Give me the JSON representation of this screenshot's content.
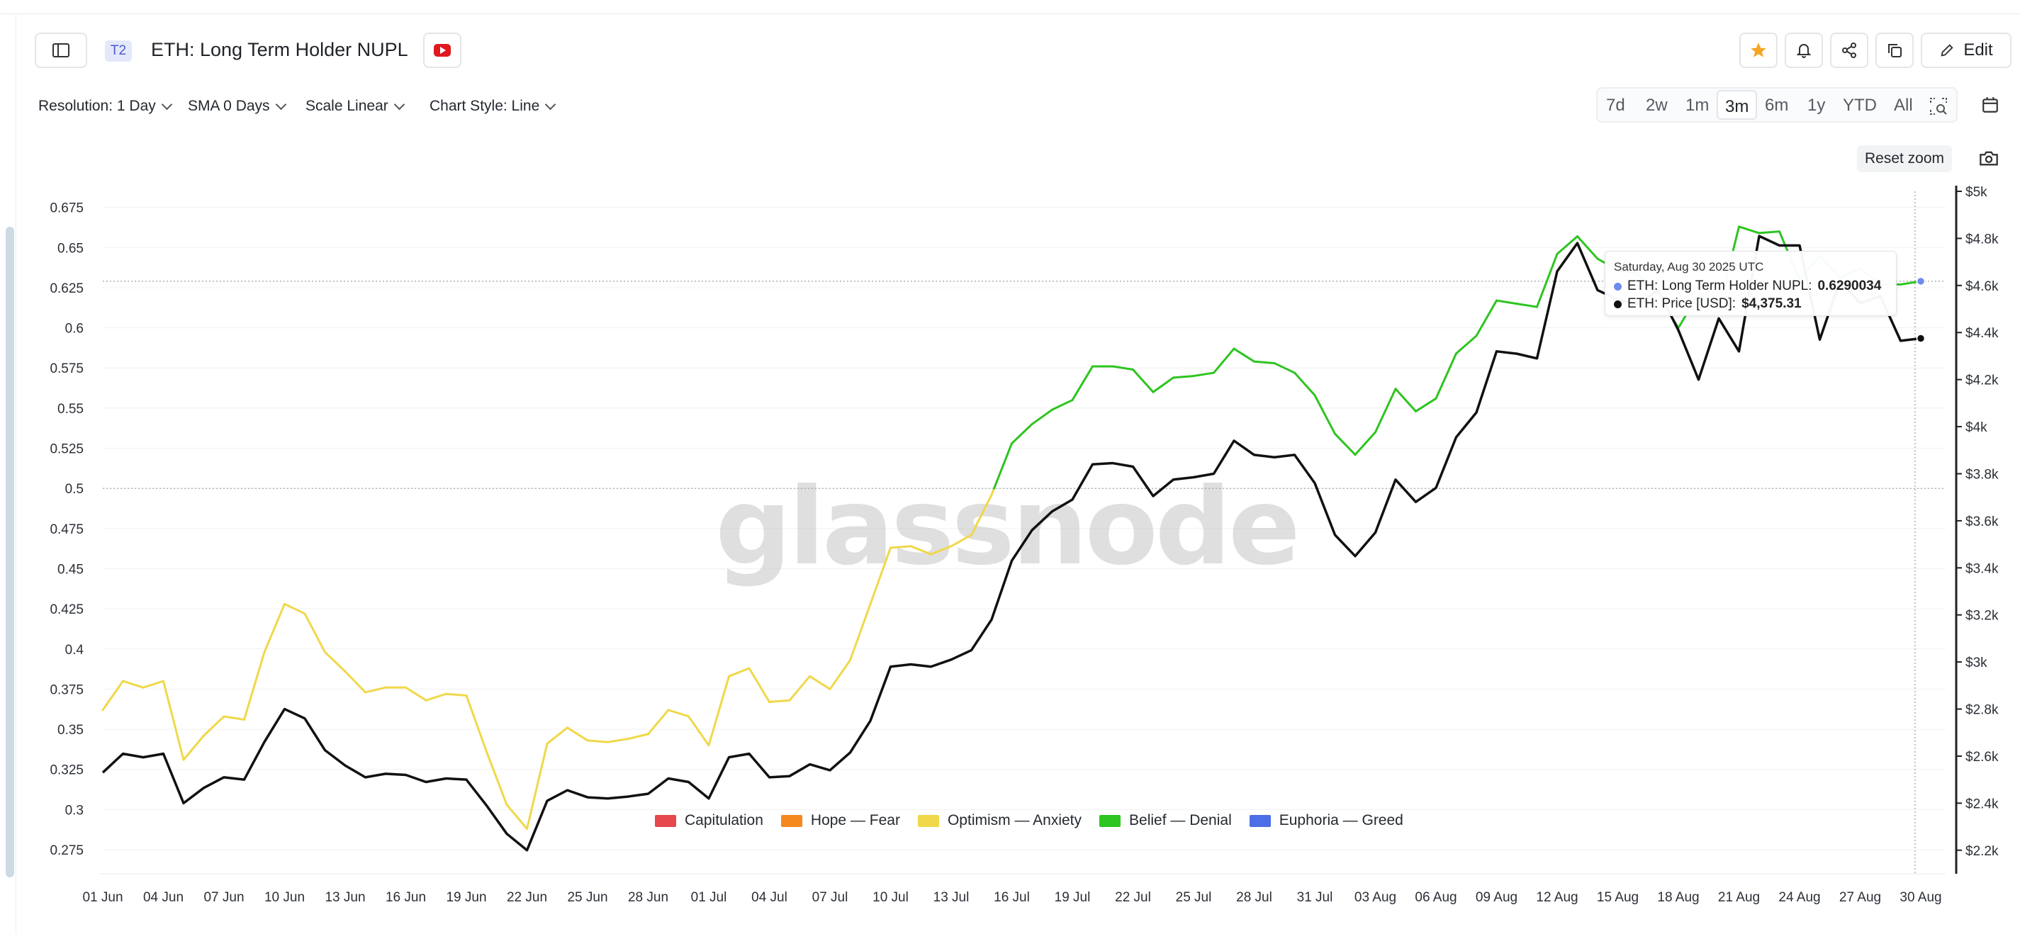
{
  "header": {
    "badge": "T2",
    "title": "ETH: Long Term Holder NUPL",
    "edit_label": "Edit"
  },
  "controls": {
    "resolution": "Resolution: 1 Day",
    "sma": "SMA 0 Days",
    "scale": "Scale Linear",
    "chart_style": "Chart Style: Line"
  },
  "ranges": [
    "7d",
    "2w",
    "1m",
    "3m",
    "6m",
    "1y",
    "YTD",
    "All"
  ],
  "active_range": "3m",
  "reset_zoom": "Reset zoom",
  "watermark": "glassnode",
  "tooltip": {
    "date": "Saturday, Aug 30 2025 UTC",
    "nupl_label": "ETH: Long Term Holder NUPL:",
    "nupl_value": "0.6290034",
    "price_label": "ETH: Price [USD]:",
    "price_value": "$4,375.31"
  },
  "colors": {
    "optimism": "#f0d84a",
    "belief": "#2ec421",
    "price": "#111111",
    "capitulation": "#e5484d",
    "hope": "#f5891f",
    "euphoria": "#4c6ee6",
    "accent_star": "#f5a623"
  },
  "legend": [
    {
      "label": "Capitulation",
      "color": "#e5484d"
    },
    {
      "label": "Hope — Fear",
      "color": "#f5891f"
    },
    {
      "label": "Optimism — Anxiety",
      "color": "#f0d84a"
    },
    {
      "label": "Belief — Denial",
      "color": "#2ec421"
    },
    {
      "label": "Euphoria — Greed",
      "color": "#4c6ee6"
    }
  ],
  "chart_data": {
    "type": "line",
    "x_tick_labels": [
      "01 Jun",
      "04 Jun",
      "07 Jun",
      "10 Jun",
      "13 Jun",
      "16 Jun",
      "19 Jun",
      "22 Jun",
      "25 Jun",
      "28 Jun",
      "01 Jul",
      "04 Jul",
      "07 Jul",
      "10 Jul",
      "13 Jul",
      "16 Jul",
      "19 Jul",
      "22 Jul",
      "25 Jul",
      "28 Jul",
      "31 Jul",
      "03 Aug",
      "06 Aug",
      "09 Aug",
      "12 Aug",
      "15 Aug",
      "18 Aug",
      "21 Aug",
      "24 Aug",
      "27 Aug",
      "30 Aug"
    ],
    "x_start": "2025-06-01",
    "x_end": "2025-08-30",
    "y_left_ticks": [
      "0.275",
      "0.3",
      "0.325",
      "0.35",
      "0.375",
      "0.4",
      "0.425",
      "0.45",
      "0.475",
      "0.5",
      "0.525",
      "0.55",
      "0.575",
      "0.6",
      "0.625",
      "0.65",
      "0.675"
    ],
    "y_left_range": [
      0.26,
      0.685
    ],
    "y_right_ticks": [
      "$2.2k",
      "$2.4k",
      "$2.6k",
      "$2.8k",
      "$3k",
      "$3.2k",
      "$3.4k",
      "$3.6k",
      "$3.8k",
      "$4k",
      "$4.2k",
      "$4.4k",
      "$4.6k",
      "$4.8k",
      "$5k"
    ],
    "y_right_range": [
      2100,
      5000
    ],
    "reference_lines": [
      0.5,
      0.6290034
    ],
    "nupl_threshold": 0.5,
    "series": [
      {
        "name": "ETH: Long Term Holder NUPL",
        "axis": "left",
        "values": [
          0.362,
          0.38,
          0.376,
          0.38,
          0.331,
          0.346,
          0.358,
          0.356,
          0.398,
          0.428,
          0.422,
          0.398,
          0.386,
          0.373,
          0.376,
          0.376,
          0.368,
          0.372,
          0.371,
          0.336,
          0.303,
          0.288,
          0.341,
          0.351,
          0.343,
          0.342,
          0.344,
          0.347,
          0.362,
          0.358,
          0.34,
          0.383,
          0.388,
          0.367,
          0.368,
          0.383,
          0.375,
          0.393,
          0.428,
          0.463,
          0.464,
          0.459,
          0.464,
          0.471,
          0.496,
          0.528,
          0.54,
          0.549,
          0.555,
          0.576,
          0.576,
          0.574,
          0.56,
          0.569,
          0.57,
          0.572,
          0.587,
          0.579,
          0.578,
          0.572,
          0.558,
          0.534,
          0.521,
          0.535,
          0.562,
          0.548,
          0.556,
          0.584,
          0.595,
          0.617,
          0.615,
          0.613,
          0.646,
          0.657,
          0.643,
          0.636,
          0.634,
          0.62,
          0.6,
          0.621,
          0.612,
          0.663,
          0.659,
          0.66,
          0.63,
          0.645,
          0.631,
          0.637,
          0.627,
          0.627,
          0.629
        ]
      },
      {
        "name": "ETH: Price [USD]",
        "axis": "right",
        "values": [
          2530,
          2610,
          2595,
          2610,
          2400,
          2465,
          2510,
          2500,
          2660,
          2800,
          2760,
          2625,
          2560,
          2510,
          2525,
          2520,
          2490,
          2505,
          2500,
          2390,
          2270,
          2200,
          2410,
          2455,
          2425,
          2420,
          2428,
          2440,
          2505,
          2490,
          2420,
          2595,
          2610,
          2510,
          2515,
          2565,
          2540,
          2615,
          2750,
          2980,
          2990,
          2980,
          3010,
          3050,
          3180,
          3430,
          3560,
          3640,
          3690,
          3840,
          3845,
          3830,
          3705,
          3775,
          3785,
          3800,
          3940,
          3880,
          3870,
          3880,
          3760,
          3540,
          3450,
          3550,
          3775,
          3680,
          3740,
          3955,
          4060,
          4320,
          4310,
          4290,
          4660,
          4780,
          4580,
          4540,
          4520,
          4580,
          4410,
          4200,
          4460,
          4320,
          4810,
          4770,
          4770,
          4370,
          4620,
          4525,
          4555,
          4365,
          4375
        ]
      }
    ]
  }
}
